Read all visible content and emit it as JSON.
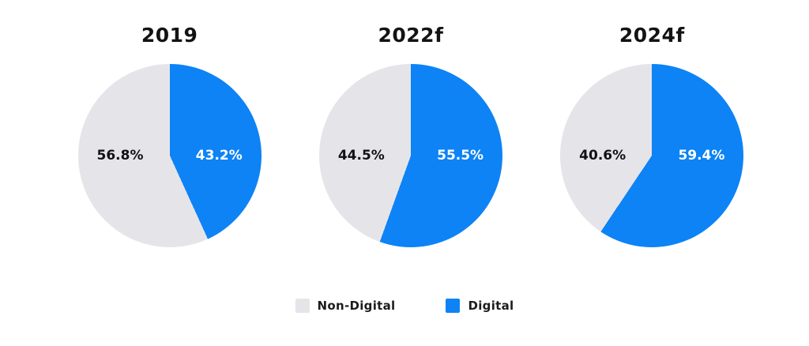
{
  "colors": {
    "digital": "#0d83f5",
    "non_digital": "#e5e5e9",
    "title_text": "#131313",
    "background": "#ffffff"
  },
  "legend": {
    "position": "bottom",
    "items": [
      {
        "label": "Non-Digital",
        "color": "#e5e5e9"
      },
      {
        "label": "Digital",
        "color": "#0d83f5"
      }
    ]
  },
  "chart_data": [
    {
      "type": "pie",
      "title": "2019",
      "start_angle_deg": 0,
      "direction": "clockwise",
      "slices": [
        {
          "label": "Digital",
          "value": 43.2,
          "display": "43.2%",
          "color": "#0d83f5"
        },
        {
          "label": "Non-Digital",
          "value": 56.8,
          "display": "56.8%",
          "color": "#e5e5e9"
        }
      ]
    },
    {
      "type": "pie",
      "title": "2022f",
      "start_angle_deg": 0,
      "direction": "clockwise",
      "slices": [
        {
          "label": "Digital",
          "value": 55.5,
          "display": "55.5%",
          "color": "#0d83f5"
        },
        {
          "label": "Non-Digital",
          "value": 44.5,
          "display": "44.5%",
          "color": "#e5e5e9"
        }
      ]
    },
    {
      "type": "pie",
      "title": "2024f",
      "start_angle_deg": 0,
      "direction": "clockwise",
      "slices": [
        {
          "label": "Digital",
          "value": 59.4,
          "display": "59.4%",
          "color": "#0d83f5"
        },
        {
          "label": "Non-Digital",
          "value": 40.6,
          "display": "40.6%",
          "color": "#e5e5e9"
        }
      ]
    }
  ]
}
